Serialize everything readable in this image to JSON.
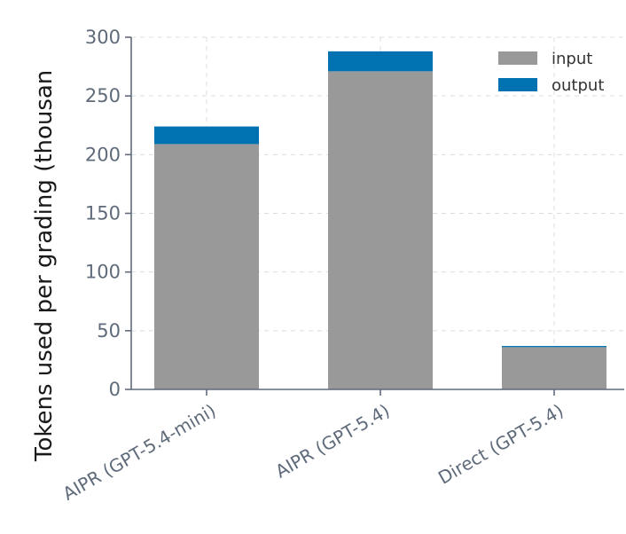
{
  "chart_data": {
    "type": "bar",
    "stacked": true,
    "categories": [
      "AIPR (GPT-5.4-mini)",
      "AIPR (GPT-5.4)",
      "Direct (GPT-5.4)"
    ],
    "series": [
      {
        "name": "input",
        "values": [
          209,
          271,
          36
        ],
        "color": "#999999"
      },
      {
        "name": "output",
        "values": [
          15,
          17,
          1
        ],
        "color": "#0072b2"
      }
    ],
    "ylabel": "Tokens used per grading (thousan",
    "ylim": [
      0,
      300
    ],
    "yticks": [
      "0",
      "50",
      "100",
      "150",
      "200",
      "250",
      "300"
    ],
    "grid": true,
    "legend_position": "top-right"
  }
}
